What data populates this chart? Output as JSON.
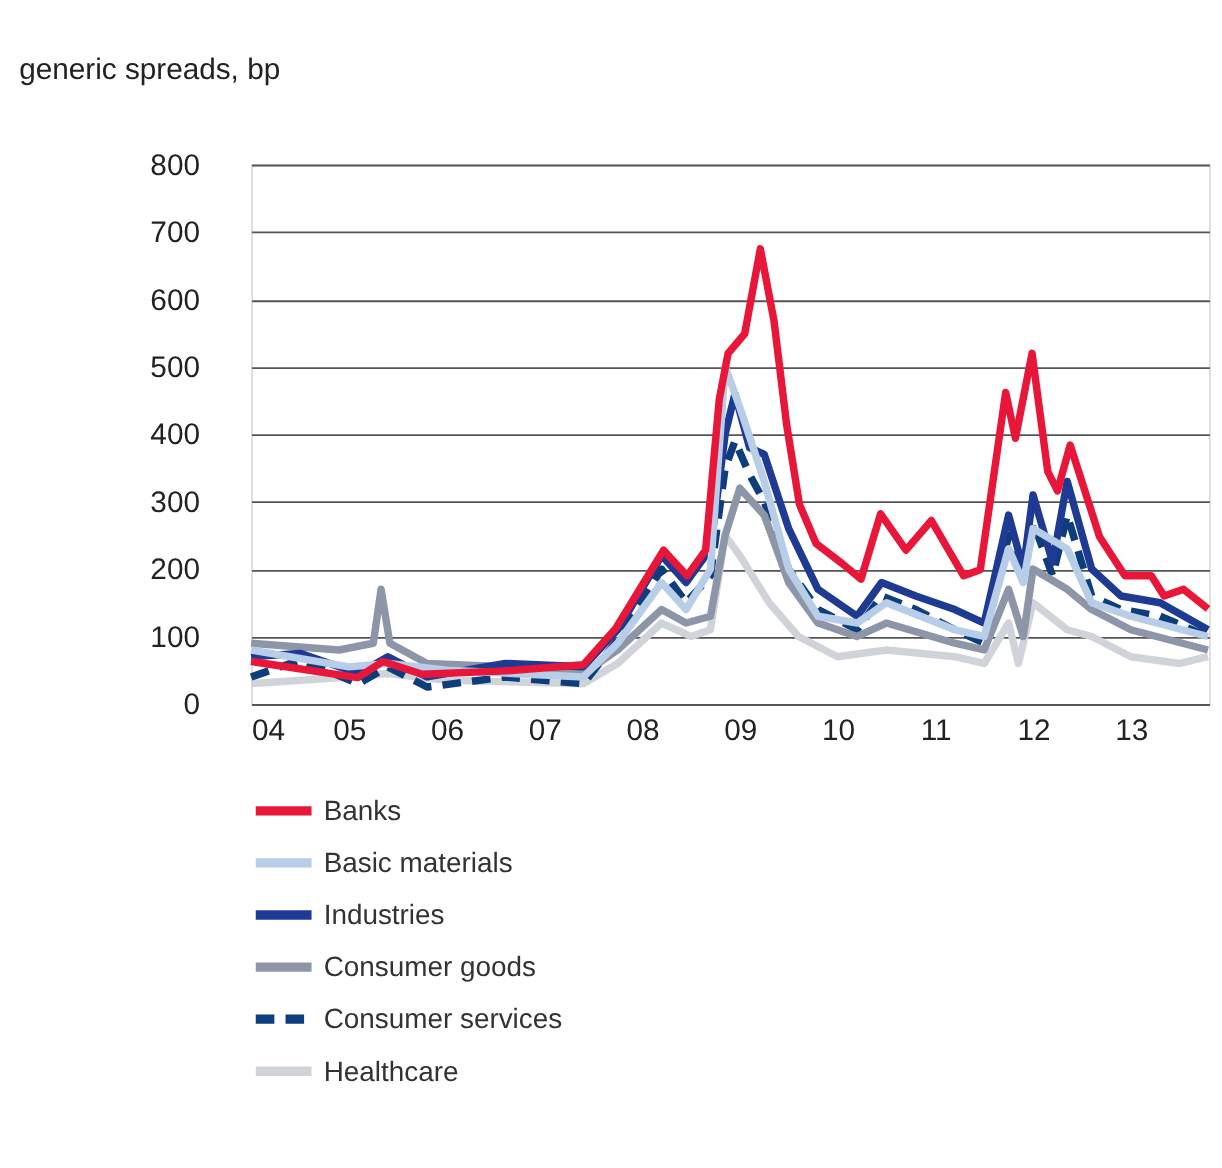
{
  "chart_data": {
    "type": "line",
    "title": "generic spreads, bp",
    "xlim": [
      2004,
      2013.8
    ],
    "xticks": [
      {
        "value": 2004,
        "label": "04"
      },
      {
        "value": 2005,
        "label": "05"
      },
      {
        "value": 2006,
        "label": "06"
      },
      {
        "value": 2007,
        "label": "07"
      },
      {
        "value": 2008,
        "label": "08"
      },
      {
        "value": 2009,
        "label": "09"
      },
      {
        "value": 2010,
        "label": "10"
      },
      {
        "value": 2011,
        "label": "11"
      },
      {
        "value": 2012,
        "label": "12"
      },
      {
        "value": 2013,
        "label": "13"
      }
    ],
    "ylim": [
      0,
      800
    ],
    "yticks": [
      0,
      100,
      200,
      300,
      400,
      500,
      600,
      700,
      800
    ],
    "grid": "y",
    "legend": "bottom",
    "line_style": "solid",
    "marker": "none",
    "series": [
      {
        "name": "Banks",
        "color": "#e8173a",
        "x": [
          2004.0,
          2005.09,
          2005.35,
          2005.75,
          2006.61,
          2007.4,
          2007.73,
          2008.22,
          2008.46,
          2008.65,
          2008.79,
          2008.88,
          2009.05,
          2009.21,
          2009.35,
          2009.48,
          2009.61,
          2009.78,
          2010.04,
          2010.24,
          2010.44,
          2010.7,
          2010.96,
          2011.29,
          2011.46,
          2011.72,
          2011.82,
          2011.99,
          2012.15,
          2012.25,
          2012.38,
          2012.68,
          2012.94,
          2013.21,
          2013.34,
          2013.54,
          2013.79
        ],
        "values": [
          63,
          39,
          63,
          44,
          49,
          58,
          112,
          228,
          190,
          228,
          452,
          520,
          549,
          675,
          568,
          413,
          296,
          238,
          209,
          185,
          282,
          228,
          272,
          190,
          199,
          462,
          394,
          520,
          345,
          316,
          384,
          248,
          190,
          190,
          160,
          170,
          141
        ]
      },
      {
        "name": "Basic materials",
        "color": "#b7cde8",
        "x": [
          2004,
          2005,
          2005.4,
          2006,
          2007.4,
          2007.75,
          2008.2,
          2008.45,
          2008.7,
          2008.85,
          2009.0,
          2009.25,
          2009.5,
          2009.8,
          2010.2,
          2010.5,
          2011.2,
          2011.5,
          2011.75,
          2011.9,
          2012.0,
          2012.35,
          2012.6,
          2013.0,
          2013.79
        ],
        "values": [
          80,
          55,
          60,
          50,
          40,
          90,
          180,
          140,
          200,
          500,
          440,
          330,
          200,
          130,
          120,
          150,
          110,
          100,
          230,
          180,
          260,
          230,
          150,
          130,
          100
        ]
      },
      {
        "name": "Industries",
        "color": "#1f3a93",
        "x": [
          2004,
          2004.5,
          2005.1,
          2005.4,
          2005.8,
          2006.6,
          2007.4,
          2007.75,
          2008.2,
          2008.45,
          2008.7,
          2008.85,
          2008.95,
          2009.1,
          2009.25,
          2009.5,
          2009.8,
          2010.2,
          2010.45,
          2010.8,
          2011.2,
          2011.5,
          2011.75,
          2011.9,
          2012.0,
          2012.2,
          2012.35,
          2012.6,
          2012.9,
          2013.3,
          2013.79
        ],
        "values": [
          70,
          75,
          45,
          70,
          40,
          60,
          55,
          110,
          220,
          180,
          230,
          400,
          460,
          380,
          370,
          260,
          170,
          130,
          180,
          160,
          140,
          120,
          280,
          200,
          310,
          210,
          330,
          200,
          160,
          150,
          110
        ]
      },
      {
        "name": "Consumer goods",
        "color": "#8c96a8",
        "x": [
          2004,
          2004.9,
          2005.25,
          2005.33,
          2005.42,
          2005.8,
          2006.6,
          2007.4,
          2007.75,
          2008.2,
          2008.45,
          2008.7,
          2008.85,
          2009.0,
          2009.25,
          2009.5,
          2009.8,
          2010.2,
          2010.5,
          2011.2,
          2011.5,
          2011.75,
          2011.9,
          2012.0,
          2012.35,
          2012.6,
          2013.0,
          2013.79
        ],
        "values": [
          90,
          80,
          90,
          170,
          90,
          60,
          55,
          45,
          80,
          140,
          120,
          130,
          250,
          320,
          280,
          180,
          120,
          100,
          120,
          90,
          80,
          170,
          100,
          200,
          170,
          140,
          110,
          80
        ]
      },
      {
        "name": "Consumer services",
        "color": "#0d3d7a",
        "line_style": "dashed",
        "x": [
          2004,
          2004.5,
          2005.1,
          2005.4,
          2005.8,
          2006.6,
          2007.4,
          2007.75,
          2008.2,
          2008.45,
          2008.7,
          2008.85,
          2008.95,
          2009.1,
          2009.25,
          2009.5,
          2009.8,
          2010.2,
          2010.45,
          2010.8,
          2011.2,
          2011.5,
          2011.75,
          2011.9,
          2012.0,
          2012.2,
          2012.35,
          2012.6,
          2012.9,
          2013.3,
          2013.79
        ],
        "values": [
          40,
          65,
          30,
          55,
          25,
          40,
          30,
          95,
          200,
          150,
          190,
          350,
          390,
          340,
          300,
          200,
          140,
          110,
          160,
          140,
          110,
          90,
          250,
          190,
          270,
          190,
          280,
          160,
          140,
          130,
          100
        ]
      },
      {
        "name": "Healthcare",
        "color": "#d0d4da",
        "x": [
          2004,
          2005,
          2005.4,
          2006,
          2007.4,
          2007.75,
          2008.2,
          2008.5,
          2008.7,
          2008.85,
          2009.0,
          2009.3,
          2009.6,
          2010.0,
          2010.5,
          2011.2,
          2011.5,
          2011.75,
          2011.85,
          2012.0,
          2012.35,
          2012.6,
          2013.0,
          2013.5,
          2013.79
        ],
        "values": [
          30,
          40,
          45,
          35,
          30,
          60,
          120,
          100,
          110,
          250,
          220,
          150,
          100,
          70,
          80,
          70,
          60,
          120,
          60,
          150,
          110,
          100,
          70,
          60,
          70
        ]
      }
    ]
  }
}
